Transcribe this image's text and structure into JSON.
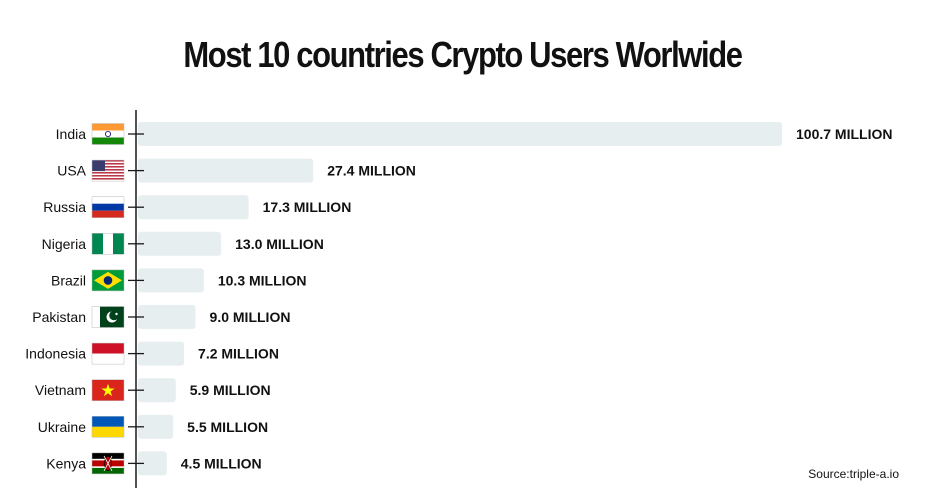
{
  "title": "Most 10 countries Crypto Users Worlwide",
  "source": "Source:triple-a.io",
  "colors": {
    "bar": "#e6eef0",
    "axis": "#1a1a1a",
    "text": "#111111"
  },
  "chart_data": {
    "type": "bar",
    "orientation": "horizontal",
    "title": "Most 10 countries Crypto Users Worlwide",
    "categories": [
      "India",
      "USA",
      "Russia",
      "Nigeria",
      "Brazil",
      "Pakistan",
      "Indonesia",
      "Vietnam",
      "Ukraine",
      "Kenya"
    ],
    "values": [
      100.7,
      27.4,
      17.3,
      13.0,
      10.3,
      9.0,
      7.2,
      5.9,
      5.5,
      4.5
    ],
    "data_labels": [
      "100.7 MILLION",
      "27.4 MILLION",
      "17.3 MILLION",
      "13.0 MILLION",
      "10.3 MILLION",
      "9.0 MILLION",
      "7.2 MILLION",
      "5.9 MILLION",
      "5.5 MILLION",
      "4.5 MILLION"
    ],
    "flags": [
      "india-flag-icon",
      "usa-flag-icon",
      "russia-flag-icon",
      "nigeria-flag-icon",
      "brazil-flag-icon",
      "pakistan-flag-icon",
      "indonesia-flag-icon",
      "vietnam-flag-icon",
      "ukraine-flag-icon",
      "kenya-flag-icon"
    ],
    "xlim": [
      0,
      100.7
    ],
    "grid": false,
    "legend": "none"
  }
}
